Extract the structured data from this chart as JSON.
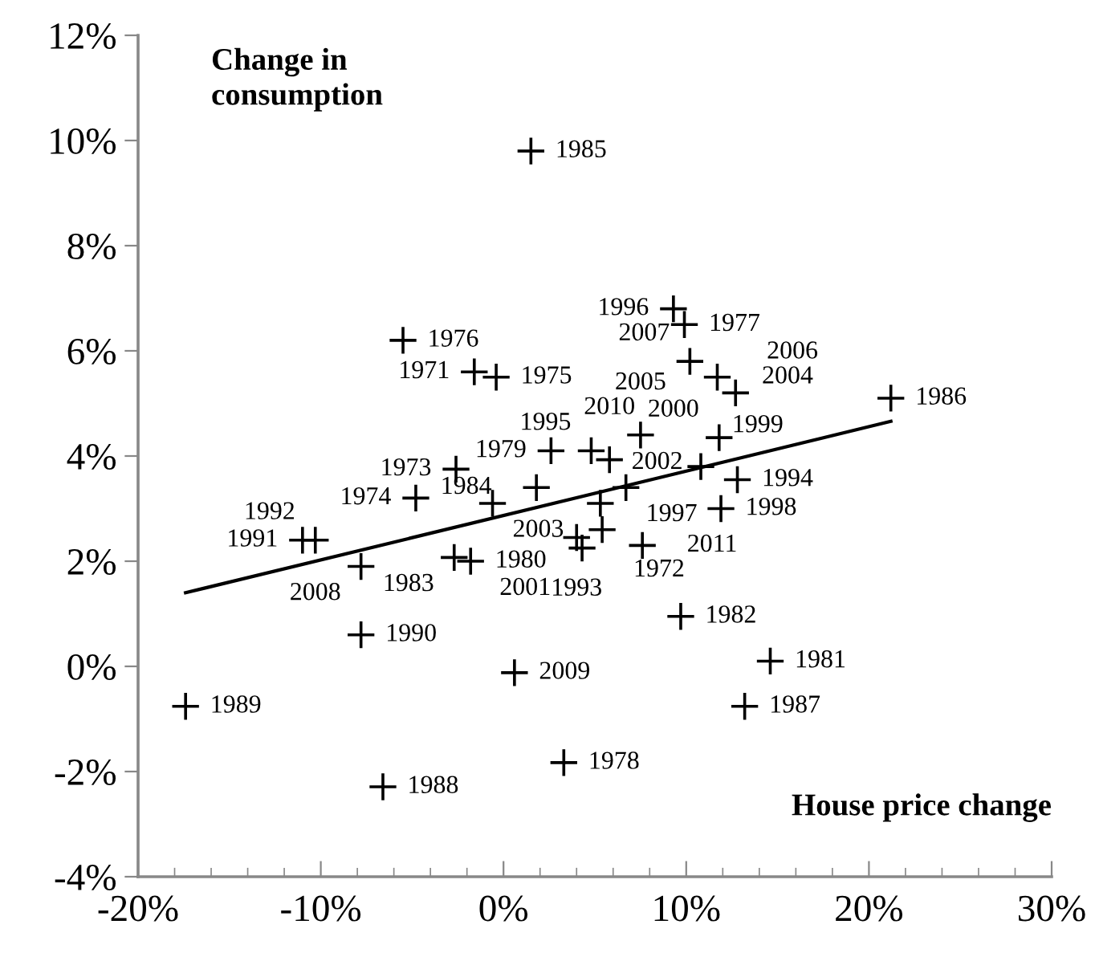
{
  "chart_data": {
    "type": "scatter",
    "xlabel": "House price change",
    "ylabel": "Change in consumption",
    "xlim": [
      -20,
      30
    ],
    "ylim": [
      -4,
      12
    ],
    "xticks": [
      {
        "value": -20,
        "label": "-20%"
      },
      {
        "value": -10,
        "label": "-10%"
      },
      {
        "value": 0,
        "label": "0%"
      },
      {
        "value": 10,
        "label": "10%"
      },
      {
        "value": 20,
        "label": "20%"
      },
      {
        "value": 30,
        "label": "30%"
      }
    ],
    "yticks": [
      {
        "value": -4,
        "label": "-4%"
      },
      {
        "value": -2,
        "label": "-2%"
      },
      {
        "value": 0,
        "label": "0%"
      },
      {
        "value": 2,
        "label": "2%"
      },
      {
        "value": 4,
        "label": "4%"
      },
      {
        "value": 6,
        "label": "6%"
      },
      {
        "value": 8,
        "label": "8%"
      },
      {
        "value": 10,
        "label": "10%"
      },
      {
        "value": 12,
        "label": "12%"
      }
    ],
    "grid": false,
    "legend": false,
    "marker": "cross",
    "series": [
      {
        "type": "scatter",
        "color": "#000000",
        "x": [
          -1.6,
          5.4,
          -2.6,
          -4.8,
          -0.4,
          -5.5,
          9.9,
          3.3,
          2.6,
          -1.8,
          14.6,
          9.7,
          -2.7,
          1.8,
          1.5,
          21.2,
          13.2,
          -6.6,
          -17.4,
          -7.8,
          -11.0,
          -10.3,
          4.0,
          12.8,
          4.8,
          9.3,
          6.7,
          11.9,
          10.8,
          11.8,
          4.3,
          5.3,
          -0.6,
          11.7,
          7.5,
          12.7,
          10.2,
          -7.8,
          0.6,
          5.8,
          7.6
        ],
        "values": [
          5.6,
          2.6,
          3.75,
          3.2,
          5.5,
          6.2,
          6.5,
          -1.83,
          4.1,
          2.0,
          0.1,
          0.95,
          2.07,
          3.4,
          9.8,
          5.1,
          -0.76,
          -2.29,
          -0.76,
          0.6,
          2.4,
          2.4,
          2.45,
          3.55,
          4.1,
          6.8,
          3.4,
          3.0,
          3.8,
          4.35,
          2.25,
          3.1,
          3.1,
          5.5,
          4.4,
          5.2,
          5.8,
          1.9,
          -0.12,
          3.93,
          2.3
        ]
      },
      {
        "type": "line",
        "color": "#000000",
        "line_style": "solid",
        "marker": "none",
        "x": [
          -17.4,
          21.2
        ],
        "values": [
          1.4,
          4.66
        ]
      }
    ],
    "annotations": [
      {
        "text": "1971",
        "x": -1.6,
        "y": 5.6
      },
      {
        "text": "1972",
        "x": 5.4,
        "y": 2.6
      },
      {
        "text": "1973",
        "x": -2.6,
        "y": 3.75
      },
      {
        "text": "1974",
        "x": -4.8,
        "y": 3.2
      },
      {
        "text": "1975",
        "x": -0.4,
        "y": 5.5
      },
      {
        "text": "1976",
        "x": -5.5,
        "y": 6.2
      },
      {
        "text": "1977",
        "x": 9.9,
        "y": 6.5
      },
      {
        "text": "1978",
        "x": 3.3,
        "y": -1.83
      },
      {
        "text": "1979",
        "x": 2.6,
        "y": 4.1
      },
      {
        "text": "1980",
        "x": -1.8,
        "y": 2.0
      },
      {
        "text": "1981",
        "x": 14.6,
        "y": 0.1
      },
      {
        "text": "1982",
        "x": 9.7,
        "y": 0.95
      },
      {
        "text": "1983",
        "x": -2.7,
        "y": 2.07
      },
      {
        "text": "1984",
        "x": 1.8,
        "y": 3.4
      },
      {
        "text": "1985",
        "x": 1.5,
        "y": 9.8
      },
      {
        "text": "1986",
        "x": 21.2,
        "y": 5.1
      },
      {
        "text": "1987",
        "x": 13.2,
        "y": -0.76
      },
      {
        "text": "1988",
        "x": -6.6,
        "y": -2.29
      },
      {
        "text": "1989",
        "x": -17.4,
        "y": -0.76
      },
      {
        "text": "1990",
        "x": -7.8,
        "y": 0.6
      },
      {
        "text": "1991",
        "x": -11.0,
        "y": 2.4
      },
      {
        "text": "1992",
        "x": -10.3,
        "y": 2.4
      },
      {
        "text": "1993",
        "x": 4.0,
        "y": 2.45
      },
      {
        "text": "1994",
        "x": 12.8,
        "y": 3.55
      },
      {
        "text": "1995",
        "x": 4.8,
        "y": 4.1
      },
      {
        "text": "1996",
        "x": 9.3,
        "y": 6.8
      },
      {
        "text": "1997",
        "x": 6.7,
        "y": 3.4
      },
      {
        "text": "1998",
        "x": 11.9,
        "y": 3.0
      },
      {
        "text": "1999",
        "x": 10.8,
        "y": 3.8
      },
      {
        "text": "2000",
        "x": 11.8,
        "y": 4.35
      },
      {
        "text": "2001",
        "x": 4.3,
        "y": 2.25
      },
      {
        "text": "2002",
        "x": 5.3,
        "y": 3.1
      },
      {
        "text": "2003",
        "x": -0.6,
        "y": 3.1
      },
      {
        "text": "2004",
        "x": 11.7,
        "y": 5.5
      },
      {
        "text": "2005",
        "x": 7.5,
        "y": 4.4
      },
      {
        "text": "2006",
        "x": 12.7,
        "y": 5.2
      },
      {
        "text": "2007",
        "x": 10.2,
        "y": 5.8
      },
      {
        "text": "2008",
        "x": -7.8,
        "y": 1.9
      },
      {
        "text": "2009",
        "x": 0.6,
        "y": -0.12
      },
      {
        "text": "2010",
        "x": 5.8,
        "y": 3.93
      },
      {
        "text": "2011",
        "x": 7.6,
        "y": 2.3
      }
    ]
  }
}
